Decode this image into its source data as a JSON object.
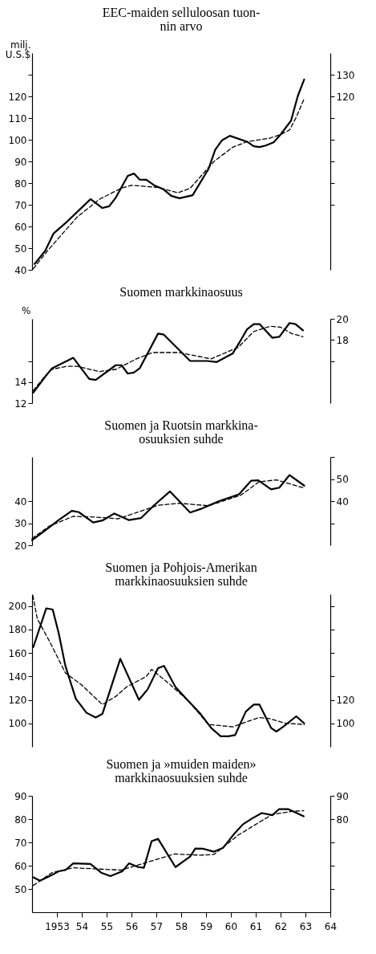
{
  "chart_data": [
    {
      "type": "line",
      "title": "EEC-maiden selluloosan tuon-\nnin arvo",
      "ylabel": "milj.\nU.S.$",
      "xlim": [
        1952,
        1964
      ],
      "ylim": [
        40,
        140
      ],
      "yticks": [
        40,
        50,
        60,
        70,
        80,
        90,
        100,
        110,
        120,
        {
          "value": 130,
          "label": null
        }
      ],
      "y2lim": [
        40,
        140
      ],
      "y2ticks": [
        {
          "value": 70,
          "label": null
        },
        {
          "value": 80,
          "label": null
        },
        {
          "value": 90,
          "label": null
        },
        {
          "value": 100,
          "label": null
        },
        {
          "value": 110,
          "label": null
        },
        120,
        130
      ],
      "tick_labels": "y",
      "series": [
        {
          "color": "#000000",
          "line_style": "solid",
          "x": [
            1952.1,
            1952.53,
            1952.86,
            1953.34,
            1954.08,
            1954.35,
            1954.83,
            1955.1,
            1955.37,
            1955.85,
            1956.1,
            1956.33,
            1956.6,
            1956.91,
            1957.29,
            1957.6,
            1957.93,
            1958.46,
            1959.1,
            1959.37,
            1959.64,
            1959.96,
            1960.65,
            1960.92,
            1961.15,
            1961.4,
            1961.72,
            1962,
            1962.42,
            1962.69,
            1962.95
          ],
          "values": [
            42.7,
            48.8,
            56.7,
            61.5,
            69.6,
            72.6,
            68.5,
            69.3,
            73.3,
            83.3,
            84.4,
            81.6,
            81.5,
            79,
            77.1,
            74.1,
            73,
            74.4,
            86.5,
            95.4,
            99.7,
            101.8,
            99.1,
            97,
            96.6,
            97.3,
            98.8,
            102.4,
            108.8,
            120.1,
            127.8
          ]
        },
        {
          "color": "#000000",
          "line_style": "dashed",
          "x": [
            1952.05,
            1952.6,
            1953.82,
            1954.72,
            1955.58,
            1956,
            1957.07,
            1957.87,
            1958.36,
            1959.32,
            1960.07,
            1960.65,
            1961.56,
            1962,
            1962.36,
            1962.63,
            1962.95
          ],
          "values": [
            40.5,
            48.5,
            64.4,
            72.6,
            77.6,
            79,
            78,
            75.5,
            77.6,
            90,
            96.5,
            99.1,
            100.7,
            102.4,
            104.5,
            110.4,
            119
          ]
        }
      ]
    },
    {
      "type": "line",
      "title": "Suomen markkinaosuus",
      "ylabel": "%",
      "xlim": [
        1952,
        1964
      ],
      "ylim": [
        12,
        20
      ],
      "yticks": [
        12,
        14,
        {
          "value": 16,
          "label": null
        }
      ],
      "y2lim": [
        12,
        20
      ],
      "y2ticks": [
        {
          "value": 16,
          "label": null
        },
        18,
        20
      ],
      "tick_labels": "y",
      "series": [
        {
          "color": "#000000",
          "line_style": "solid",
          "x": [
            1952.05,
            1952.53,
            1952.8,
            1953.66,
            1954.3,
            1954.56,
            1955.37,
            1955.6,
            1955.85,
            1956.1,
            1956.33,
            1957.07,
            1957.3,
            1958.36,
            1958.7,
            1959.05,
            1959.43,
            1960.07,
            1960.33,
            1960.65,
            1960.92,
            1961.15,
            1961.67,
            1961.95,
            1962.36,
            1962.6,
            1962.9
          ],
          "values": [
            13,
            14.5,
            15.3,
            16.3,
            14.3,
            14.2,
            15.6,
            15.6,
            14.8,
            14.9,
            15.3,
            18.6,
            18.5,
            16,
            16,
            16,
            15.9,
            16.7,
            17.7,
            19,
            19.5,
            19.5,
            18.2,
            18.3,
            19.6,
            19.5,
            18.9
          ]
        },
        {
          "color": "#000000",
          "line_style": "dashed",
          "x": [
            1952.05,
            1952.53,
            1952.8,
            1953.4,
            1953.8,
            1954.7,
            1955.37,
            1956.2,
            1956.85,
            1957.9,
            1959.2,
            1960.3,
            1960.92,
            1961.6,
            1962,
            1962.45,
            1962.9
          ],
          "values": [
            13.2,
            14.6,
            15.2,
            15.5,
            15.5,
            15,
            15.2,
            16.2,
            16.8,
            16.8,
            16.2,
            17.3,
            18.8,
            19.3,
            19.2,
            18.6,
            18.3
          ]
        }
      ]
    },
    {
      "type": "line",
      "title": "Suomen ja Ruotsin markkina-\nosuuksien suhde",
      "xlim": [
        1952,
        1964
      ],
      "ylim": [
        20,
        60
      ],
      "yticks": [
        20,
        30,
        40
      ],
      "y2lim": [
        20,
        60
      ],
      "y2ticks": [
        {
          "value": 30,
          "label": null
        },
        40,
        50,
        {
          "value": 60,
          "label": null
        }
      ],
      "tick_labels": "y",
      "series": [
        {
          "color": "#000000",
          "line_style": "solid",
          "x": [
            1952,
            1952.43,
            1953.07,
            1953.6,
            1953.88,
            1954.46,
            1954.83,
            1955.31,
            1955.9,
            1956.38,
            1956.91,
            1957.55,
            1958.36,
            1958.78,
            1959.53,
            1960.33,
            1960.81,
            1961.1,
            1961.62,
            1961.95,
            1962.36,
            1962.95
          ],
          "values": [
            22.3,
            25.9,
            31.4,
            35.6,
            35,
            30.3,
            31.2,
            34.4,
            31.4,
            32.3,
            38.1,
            44.4,
            34.8,
            36.4,
            40,
            43.1,
            49.2,
            49.4,
            45.3,
            46.1,
            51.8,
            47
          ]
        },
        {
          "color": "#000000",
          "line_style": "dashed",
          "x": [
            1952,
            1952.7,
            1953.66,
            1954.5,
            1955.47,
            1957.07,
            1957.93,
            1959.1,
            1960.39,
            1961.13,
            1961.83,
            1962.95
          ],
          "values": [
            23.1,
            28.7,
            33.1,
            32.8,
            32,
            38.1,
            39,
            37.9,
            42.6,
            48.7,
            49.6,
            45.9
          ]
        }
      ]
    },
    {
      "type": "line",
      "title": "Suomen ja Pohjois-Amerikan\nmarkkinaosuuksien suhde",
      "xlim": [
        1952,
        1964
      ],
      "ylim": [
        80,
        210
      ],
      "yticks": [
        100,
        120,
        140,
        160,
        180,
        200
      ],
      "y2lim": [
        80,
        210
      ],
      "y2ticks": [
        100,
        120,
        {
          "value": 140,
          "label": null
        },
        {
          "value": 160,
          "label": null
        },
        {
          "value": 180,
          "label": null
        },
        {
          "value": 200,
          "label": null
        }
      ],
      "tick_labels": "y",
      "series": [
        {
          "color": "#000000",
          "line_style": "solid",
          "x": [
            1952.05,
            1952.57,
            1952.83,
            1953.07,
            1953.34,
            1953.76,
            1954.19,
            1954.56,
            1954.83,
            1955.55,
            1956.3,
            1956.65,
            1957.07,
            1957.31,
            1957.77,
            1958.2,
            1958.78,
            1959.21,
            1959.59,
            1959.9,
            1960.17,
            1960.6,
            1960.92,
            1961.15,
            1961.62,
            1961.83,
            1962.1,
            1962.63,
            1962.95
          ],
          "values": [
            165,
            198,
            197,
            177,
            149,
            121,
            109,
            105,
            108,
            155,
            120,
            129,
            147,
            149,
            131,
            121,
            108,
            96,
            89,
            89,
            90,
            110,
            116,
            116,
            96,
            93,
            97,
            106,
            100
          ]
        },
        {
          "color": "#000000",
          "line_style": "dashed",
          "x": [
            1952.03,
            1952.21,
            1952.7,
            1953.34,
            1953.98,
            1954.83,
            1955.37,
            1955.8,
            1956.6,
            1956.81,
            1957.5,
            1958.25,
            1959.1,
            1960.07,
            1961.13,
            1961.56,
            1962.2,
            1962.95
          ],
          "values": [
            209,
            189,
            170,
            143,
            133,
            116,
            123,
            131,
            140,
            146,
            134,
            120,
            99,
            97,
            105,
            104,
            100,
            99
          ]
        }
      ]
    },
    {
      "type": "line",
      "title": "Suomen ja »muiden maiden»\nmarkkinaosuuksien suhde",
      "xlim": [
        1952,
        1964
      ],
      "xticks": [
        1953,
        {
          "value": 1954,
          "label": "54"
        },
        {
          "value": 1955,
          "label": "55"
        },
        {
          "value": 1956,
          "label": "56"
        },
        {
          "value": 1957,
          "label": "57"
        },
        {
          "value": 1958,
          "label": "58"
        },
        {
          "value": 1959,
          "label": "59"
        },
        {
          "value": 1960,
          "label": "60"
        },
        {
          "value": 1961,
          "label": "61"
        },
        {
          "value": 1962,
          "label": "62"
        },
        {
          "value": 1963,
          "label": "63"
        },
        {
          "value": 1964,
          "label": "64"
        }
      ],
      "ylim": [
        40,
        90
      ],
      "yticks": [
        50,
        60,
        70,
        80,
        90
      ],
      "y2lim": [
        40,
        90
      ],
      "y2ticks": [
        {
          "value": 50,
          "label": null
        },
        {
          "value": 60,
          "label": null
        },
        {
          "value": 70,
          "label": null
        },
        80,
        90
      ],
      "series": [
        {
          "color": "#000000",
          "line_style": "solid",
          "x": [
            1952.05,
            1952.32,
            1952.8,
            1953.07,
            1953.34,
            1953.66,
            1954.35,
            1954.78,
            1955.15,
            1955.63,
            1955.9,
            1956.27,
            1956.5,
            1956.81,
            1957.07,
            1957.77,
            1958.36,
            1958.57,
            1958.87,
            1959.32,
            1959.69,
            1960.12,
            1960.49,
            1960.87,
            1961.24,
            1961.67,
            1961.94,
            1962.3,
            1962.93
          ],
          "values": [
            55,
            53.5,
            56,
            57.6,
            58.1,
            61,
            60.7,
            57,
            55.5,
            57.6,
            61,
            59.4,
            59.1,
            70.5,
            71.5,
            59.4,
            63.9,
            67.4,
            67.3,
            66,
            67.7,
            73.5,
            77.8,
            80.4,
            82.6,
            81.7,
            84.3,
            84.3,
            81.2
          ]
        },
        {
          "color": "#000000",
          "line_style": "dashed",
          "x": [
            1952.05,
            1952.8,
            1953.66,
            1954.94,
            1955.58,
            1956.65,
            1957.72,
            1958.78,
            1959.32,
            1960.28,
            1960.92,
            1961.67,
            1962.52,
            1962.93
          ],
          "values": [
            51.5,
            57,
            59.1,
            58.4,
            58.1,
            61.5,
            65,
            64.5,
            64.8,
            73,
            77.2,
            82,
            83.4,
            83.6
          ]
        }
      ]
    }
  ]
}
